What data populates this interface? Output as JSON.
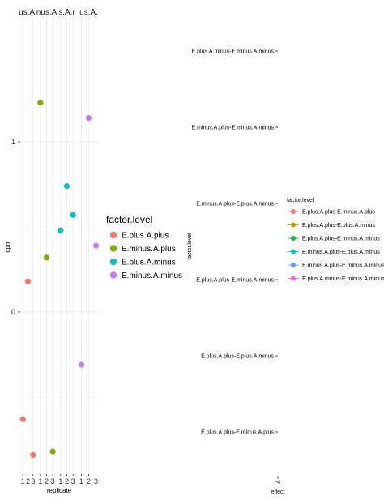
{
  "chart_data": [
    {
      "type": "scatter",
      "facet_labels": [
        "us.A.",
        "nus.A",
        "s.A.r",
        "us.A."
      ],
      "x_categories": [
        "1",
        "2",
        "3"
      ],
      "xlabel": "replicate",
      "ylabel": "cpm",
      "y_ticks": [
        "0",
        "1"
      ],
      "ylim": [
        -0.98,
        1.31
      ],
      "legend_title": "factor.level",
      "legend_position": "right",
      "series": [
        {
          "name": "E.plus.A.plus",
          "color": "#F8766D",
          "points": [
            {
              "facet": 1,
              "x": "1",
              "y": -0.63
            },
            {
              "facet": 1,
              "x": "2",
              "y": 0.18
            },
            {
              "facet": 1,
              "x": "3",
              "y": -0.84
            }
          ]
        },
        {
          "name": "E.minus.A.plus",
          "color": "#7CAE00",
          "points": [
            {
              "facet": 2,
              "x": "1",
              "y": 1.23
            },
            {
              "facet": 2,
              "x": "2",
              "y": 0.32
            },
            {
              "facet": 2,
              "x": "3",
              "y": -0.82
            }
          ]
        },
        {
          "name": "E.plus.A.minus",
          "color": "#00BFC4",
          "points": [
            {
              "facet": 3,
              "x": "1",
              "y": 0.48
            },
            {
              "facet": 3,
              "x": "2",
              "y": 0.74
            },
            {
              "facet": 3,
              "x": "3",
              "y": 0.57
            }
          ]
        },
        {
          "name": "E.minus.A.minus",
          "color": "#C77CFF",
          "points": [
            {
              "facet": 4,
              "x": "1",
              "y": -0.31
            },
            {
              "facet": 4,
              "x": "2",
              "y": 1.14
            },
            {
              "facet": 4,
              "x": "3",
              "y": 0.39
            }
          ]
        }
      ]
    },
    {
      "type": "scatter",
      "xlabel": "effect",
      "ylabel": "factor.level",
      "x_tick": "-4",
      "y_categories": [
        "E.plus.A.minus-E.minus.A.minus",
        "E.minus.A.plus-E.minus.A.minus",
        "E.minus.A.plus-E.plus.A.minus",
        "E.plus.A.plus-E.minus.A.minus",
        "E.plus.A.plus-E.plus.A.minus",
        "E.plus.A.plus-E.minus.A.plus"
      ],
      "legend_title": "factor.level",
      "legend_position": "right",
      "legend": [
        {
          "name": "E.plus.A.plus-E.minus.A.plus",
          "color": "#F8766D"
        },
        {
          "name": "E.plus.A.plus-E.plus.A.minus",
          "color": "#B79F00"
        },
        {
          "name": "E.plus.A.plus-E.minus.A.minus",
          "color": "#00BA38"
        },
        {
          "name": "E.minus.A.plus-E.plus.A.minus",
          "color": "#00BFC4"
        },
        {
          "name": "E.minus.A.plus-E.minus.A.minus",
          "color": "#619CFF"
        },
        {
          "name": "E.plus.A.minus-E.minus.A.minus",
          "color": "#F564E3"
        }
      ]
    }
  ]
}
